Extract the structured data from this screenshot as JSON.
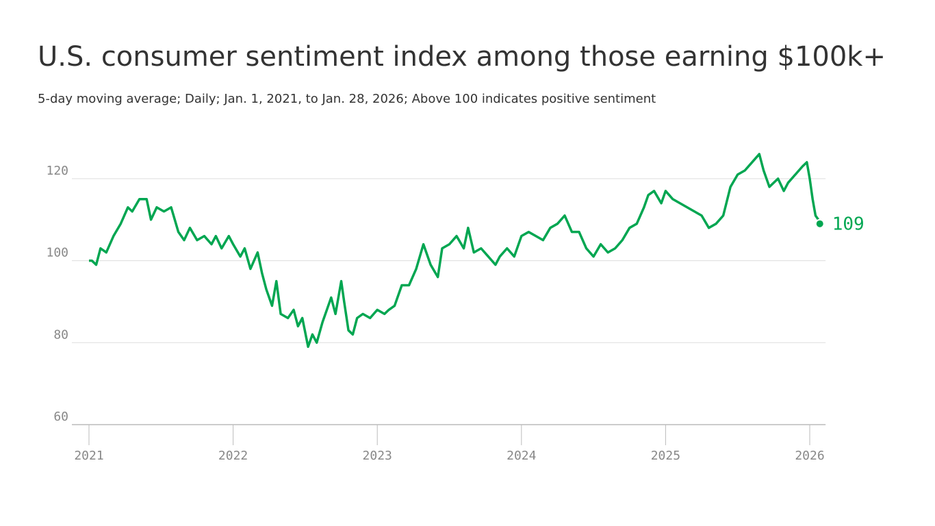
{
  "chart_data": {
    "type": "line",
    "title": "U.S. consumer sentiment index among those earning $100k+",
    "subtitle": "5-day moving average; Daily; Jan. 1, 2021, to Jan. 28, 2026; Above 100 indicates positive sentiment",
    "x": [
      2021.0,
      2021.02,
      2021.05,
      2021.08,
      2021.12,
      2021.17,
      2021.22,
      2021.27,
      2021.3,
      2021.35,
      2021.4,
      2021.43,
      2021.47,
      2021.52,
      2021.57,
      2021.62,
      2021.66,
      2021.7,
      2021.75,
      2021.8,
      2021.85,
      2021.88,
      2021.92,
      2021.97,
      2022.0,
      2022.05,
      2022.08,
      2022.12,
      2022.17,
      2022.2,
      2022.23,
      2022.27,
      2022.3,
      2022.33,
      2022.38,
      2022.42,
      2022.45,
      2022.48,
      2022.52,
      2022.55,
      2022.58,
      2022.62,
      2022.65,
      2022.68,
      2022.71,
      2022.75,
      2022.77,
      2022.8,
      2022.83,
      2022.86,
      2022.9,
      2022.95,
      2023.0,
      2023.05,
      2023.08,
      2023.12,
      2023.17,
      2023.22,
      2023.27,
      2023.32,
      2023.37,
      2023.42,
      2023.45,
      2023.5,
      2023.55,
      2023.6,
      2023.63,
      2023.67,
      2023.72,
      2023.77,
      2023.82,
      2023.85,
      2023.9,
      2023.95,
      2024.0,
      2024.05,
      2024.1,
      2024.15,
      2024.2,
      2024.25,
      2024.3,
      2024.35,
      2024.4,
      2024.45,
      2024.5,
      2024.55,
      2024.6,
      2024.65,
      2024.7,
      2024.75,
      2024.8,
      2024.85,
      2024.88,
      2024.92,
      2024.97,
      2025.0,
      2025.05,
      2025.1,
      2025.15,
      2025.2,
      2025.25,
      2025.3,
      2025.35,
      2025.4,
      2025.45,
      2025.5,
      2025.55,
      2025.6,
      2025.65,
      2025.68,
      2025.72,
      2025.78,
      2025.82,
      2025.85,
      2025.9,
      2025.95,
      2025.98,
      2026.0,
      2026.02,
      2026.04,
      2026.06,
      2026.07
    ],
    "series": [
      {
        "color": "#00a651",
        "values": [
          100,
          100,
          99,
          103,
          102,
          106,
          109,
          113,
          112,
          115,
          115,
          110,
          113,
          112,
          113,
          107,
          105,
          108,
          105,
          106,
          104,
          106,
          103,
          106,
          104,
          101,
          103,
          98,
          102,
          97,
          93,
          89,
          95,
          87,
          86,
          88,
          84,
          86,
          79,
          82,
          80,
          85,
          88,
          91,
          87,
          95,
          90,
          83,
          82,
          86,
          87,
          86,
          88,
          87,
          88,
          89,
          94,
          94,
          98,
          104,
          99,
          96,
          103,
          104,
          106,
          103,
          108,
          102,
          103,
          101,
          99,
          101,
          103,
          101,
          106,
          107,
          106,
          105,
          108,
          109,
          111,
          107,
          107,
          103,
          101,
          104,
          102,
          103,
          105,
          108,
          109,
          113,
          116,
          117,
          114,
          117,
          115,
          114,
          113,
          112,
          111,
          108,
          109,
          111,
          118,
          121,
          122,
          124,
          126,
          122,
          118,
          120,
          117,
          119,
          121,
          123,
          124,
          120,
          115,
          111,
          110,
          109
        ]
      }
    ],
    "xlim": [
      2021,
      2026.11
    ],
    "xticks": [
      2021,
      2022,
      2023,
      2024,
      2025,
      2026
    ],
    "ylim": [
      60,
      130
    ],
    "yticks": [
      60,
      80,
      100,
      120
    ],
    "grid": true
  }
}
